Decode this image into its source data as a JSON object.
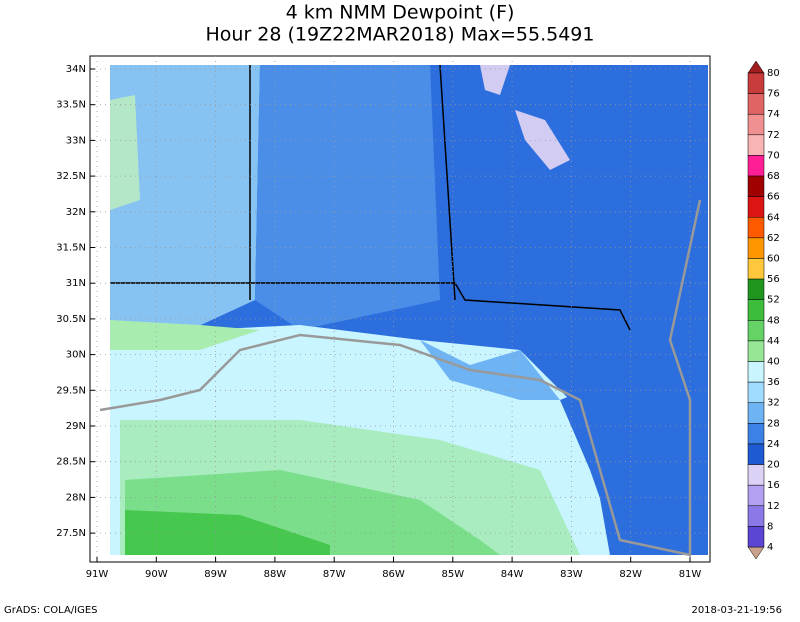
{
  "title": {
    "line1": "4 km NMM Dewpoint (F)",
    "line2": "Hour 28 (19Z22MAR2018) Max=55.5491"
  },
  "map": {
    "lat_labels": [
      "34N",
      "33.5N",
      "33N",
      "32.5N",
      "32N",
      "31.5N",
      "31N",
      "30.5N",
      "30N",
      "29.5N",
      "29N",
      "28.5N",
      "28N",
      "27.5N"
    ],
    "lon_labels": [
      "91W",
      "90W",
      "89W",
      "88W",
      "87W",
      "86W",
      "85W",
      "84W",
      "83W",
      "82W",
      "81W"
    ]
  },
  "colorbar": {
    "levels": [
      80,
      76,
      74,
      72,
      70,
      68,
      66,
      64,
      62,
      60,
      56,
      52,
      48,
      44,
      40,
      36,
      32,
      28,
      24,
      20,
      16,
      12,
      8,
      4
    ],
    "colors": [
      "#c83c3c",
      "#e06464",
      "#f09090",
      "#f8b4b4",
      "#ff1e96",
      "#a00000",
      "#dc1414",
      "#ff5a00",
      "#ff9600",
      "#ffc83c",
      "#1e961e",
      "#3cbe3c",
      "#64d264",
      "#96e696",
      "#c8f5ff",
      "#a0dcff",
      "#6eb4f5",
      "#3c82e6",
      "#1e5ad2",
      "#dcd2f5",
      "#b4a0f0",
      "#8c78e6",
      "#5a46d2",
      "#2814a0"
    ],
    "top_color": "#a01e1e",
    "bottom_color": "#c8a08c"
  },
  "footer": {
    "left": "GrADS: COLA/IGES",
    "right": "2018-03-21-19:56"
  }
}
